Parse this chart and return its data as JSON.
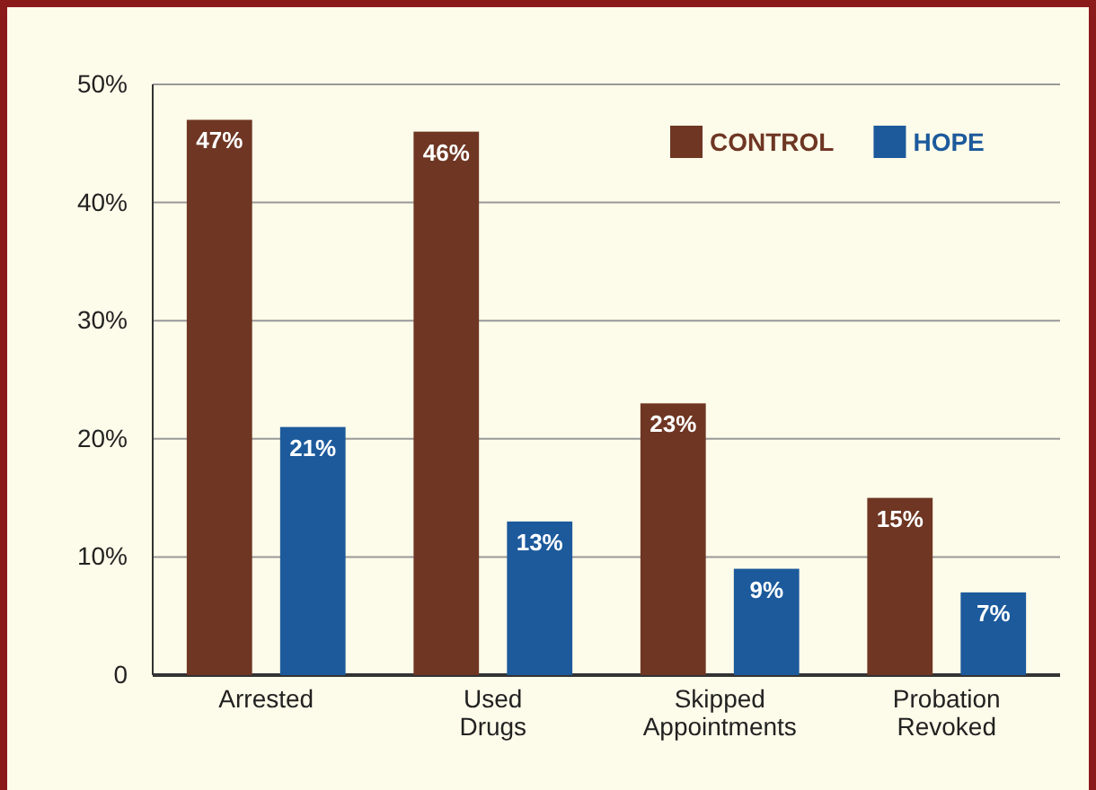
{
  "chart_data": {
    "type": "bar",
    "categories": [
      "Arrested",
      "Used Drugs",
      "Skipped Appointments",
      "Probation Revoked"
    ],
    "series": [
      {
        "name": "CONTROL",
        "color": "#6e3623",
        "values": [
          47,
          46,
          23,
          15
        ],
        "value_labels": [
          "47%",
          "46%",
          "23%",
          "15%"
        ]
      },
      {
        "name": "HOPE",
        "color": "#1c5a9c",
        "values": [
          21,
          13,
          9,
          7
        ],
        "value_labels": [
          "21%",
          "13%",
          "9%",
          "7%"
        ]
      }
    ],
    "ylim": [
      0,
      50
    ],
    "yticks": [
      {
        "value": 0,
        "label": "0"
      },
      {
        "value": 10,
        "label": "10%"
      },
      {
        "value": 20,
        "label": "20%"
      },
      {
        "value": 30,
        "label": "30%"
      },
      {
        "value": 40,
        "label": "40%"
      },
      {
        "value": 50,
        "label": "50%"
      }
    ],
    "grid": "y",
    "legend": "top right"
  }
}
